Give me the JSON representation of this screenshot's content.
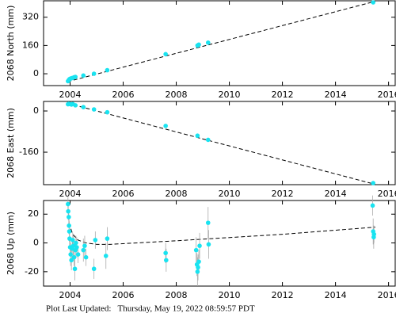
{
  "chart_data": [
    {
      "type": "scatter",
      "ylabel": "2068 North (mm)",
      "color": "#19e3f0",
      "trend_color": "#000000",
      "x": [
        2003.92,
        2003.95,
        2003.98,
        2004.02,
        2004.08,
        2004.15,
        2004.2,
        2004.5,
        2004.9,
        2005.4,
        2007.6,
        2008.8,
        2008.85,
        2009.2,
        2015.42
      ],
      "values": [
        -42,
        -36,
        -30,
        -27,
        -24,
        -20,
        -18,
        -10,
        0,
        20,
        111,
        160,
        165,
        176,
        404
      ],
      "trend_x": [
        2003.9,
        2015.5
      ],
      "trend_values": [
        -45,
        410
      ],
      "xlim": [
        2003.0,
        2016.25
      ],
      "ylim": [
        -67,
        413
      ],
      "xticks": [
        2004,
        2006,
        2008,
        2010,
        2012,
        2014,
        2016
      ],
      "yticks": [
        0,
        160,
        320
      ]
    },
    {
      "type": "scatter",
      "ylabel": "2068 East (mm)",
      "color": "#19e3f0",
      "trend_color": "#000000",
      "x": [
        2003.92,
        2003.95,
        2003.98,
        2004.05,
        2004.1,
        2004.2,
        2004.5,
        2004.9,
        2005.4,
        2007.6,
        2008.8,
        2009.2,
        2015.42
      ],
      "values": [
        26,
        28,
        27,
        25,
        27,
        22,
        15,
        6,
        -5,
        -58,
        -96,
        -112,
        -280
      ],
      "trend_x": [
        2003.9,
        2015.5
      ],
      "trend_values": [
        30,
        -285
      ],
      "xlim": [
        2003.0,
        2016.25
      ],
      "ylim": [
        -286,
        37
      ],
      "xticks": [
        2004,
        2006,
        2008,
        2010,
        2012,
        2014,
        2016
      ],
      "yticks": [
        -160,
        0
      ]
    },
    {
      "type": "errorscatter",
      "ylabel": "2068 Up (mm)",
      "color": "#19e3f0",
      "trend_color": "#000000",
      "error_color": "#aaaaaa",
      "x": [
        2003.92,
        2003.93,
        2003.95,
        2003.96,
        2003.97,
        2003.98,
        2004.0,
        2004.02,
        2004.05,
        2004.08,
        2004.1,
        2004.12,
        2004.15,
        2004.18,
        2004.2,
        2004.22,
        2004.25,
        2004.3,
        2004.5,
        2004.55,
        2004.6,
        2004.9,
        2004.95,
        2005.35,
        2005.4,
        2007.6,
        2007.62,
        2008.75,
        2008.78,
        2008.8,
        2008.82,
        2008.85,
        2008.88,
        2009.2,
        2009.22,
        2015.4,
        2015.42,
        2015.44,
        2015.45
      ],
      "values": [
        27,
        22,
        18,
        12,
        8,
        3,
        -3,
        -8,
        -12,
        -4,
        2,
        -2,
        -10,
        -18,
        -5,
        0,
        -3,
        -8,
        -5,
        -2,
        -10,
        -18,
        2,
        -9,
        3,
        -7,
        -12,
        -5,
        -15,
        -20,
        -17,
        -13,
        -2,
        14,
        -1,
        26,
        8,
        4,
        6
      ],
      "errors": [
        5,
        6,
        5,
        6,
        7,
        5,
        6,
        8,
        7,
        6,
        5,
        7,
        6,
        8,
        6,
        5,
        7,
        6,
        8,
        7,
        6,
        7,
        6,
        9,
        8,
        7,
        8,
        9,
        8,
        10,
        9,
        8,
        9,
        11,
        10,
        7,
        9,
        8,
        6
      ],
      "trend_x": [
        2003.95,
        2004.1,
        2004.3,
        2004.6,
        2005.0,
        2005.5,
        2008,
        2012,
        2015.5
      ],
      "trend_values": [
        14,
        6,
        2,
        0,
        -1,
        -1,
        1.5,
        6,
        11
      ],
      "xlim": [
        2003.0,
        2016.25
      ],
      "ylim": [
        -30,
        29.5
      ],
      "xticks": [
        2004,
        2006,
        2008,
        2010,
        2012,
        2014,
        2016
      ],
      "yticks": [
        -20,
        0,
        20
      ]
    }
  ],
  "footer": "Plot Last Updated:   Thursday, May 19, 2022 08:59:57 PDT"
}
